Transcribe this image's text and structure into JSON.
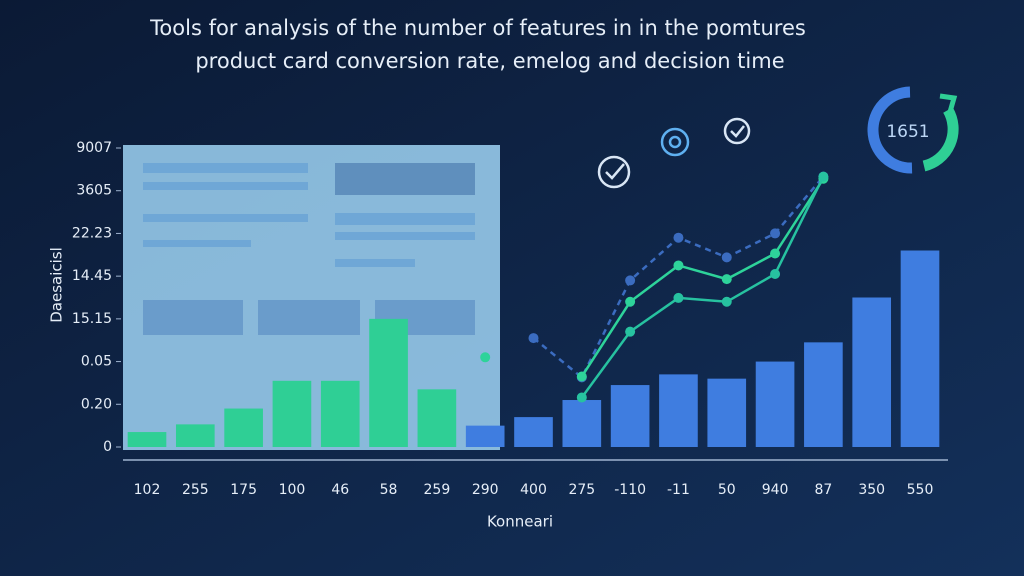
{
  "chart_data": {
    "type": "bar",
    "title": [
      "Tools for analysis of the number of features in in the pomtures",
      "product card conversion rate, emelog and decision time"
    ],
    "y_label": "Daesaicisl",
    "x_label": "Konneari",
    "badge": "1651",
    "categories": [
      "102",
      "255",
      "175",
      "100",
      "46",
      "58",
      "259",
      "290",
      "400",
      "275",
      "-110",
      "-11",
      "50",
      "940",
      "87",
      "350",
      "550"
    ],
    "values": [
      0.35,
      0.53,
      0.9,
      1.55,
      1.55,
      3.0,
      1.35,
      0.5,
      0.7,
      1.1,
      1.45,
      1.7,
      1.6,
      2.0,
      2.45,
      3.5,
      4.6
    ],
    "colors": [
      "#2fcf95",
      "#2fcf95",
      "#2fcf95",
      "#2fcf95",
      "#2fcf95",
      "#2fcf95",
      "#2fcf95",
      "#3f7de0",
      "#3f7de0",
      "#3f7de0",
      "#3f7de0",
      "#3f7de0",
      "#3f7de0",
      "#3f7de0",
      "#3f7de0",
      "#3f7de0",
      "#3f7de0"
    ],
    "lines": [
      {
        "color": "#3b6cc0",
        "dashed": true,
        "values": [
          null,
          null,
          null,
          null,
          null,
          null,
          null,
          null,
          2.55,
          1.63,
          3.9,
          4.9,
          4.44,
          5.0,
          6.33,
          null,
          null
        ]
      },
      {
        "color": "#2ed39a",
        "dashed": false,
        "values": [
          null,
          null,
          null,
          null,
          null,
          null,
          null,
          2.1,
          null,
          1.65,
          3.4,
          4.25,
          3.93,
          4.53,
          6.28,
          null,
          null
        ]
      },
      {
        "color": "#27c2a0",
        "dashed": false,
        "values": [
          null,
          null,
          null,
          null,
          null,
          null,
          null,
          null,
          null,
          1.16,
          2.7,
          3.49,
          3.4,
          4.05,
          6.33,
          null,
          null
        ]
      }
    ],
    "ylim": [
      0,
      7
    ],
    "yticks": [
      {
        "value": 0,
        "label": "0"
      },
      {
        "value": 1,
        "label": "0.20"
      },
      {
        "value": 2,
        "label": "0.05"
      },
      {
        "value": 3,
        "label": "15.15"
      },
      {
        "value": 4,
        "label": "14.45"
      },
      {
        "value": 5,
        "label": "22.23"
      },
      {
        "value": 6,
        "label": "3605"
      },
      {
        "value": 7,
        "label": "9007"
      }
    ],
    "grid": false
  }
}
